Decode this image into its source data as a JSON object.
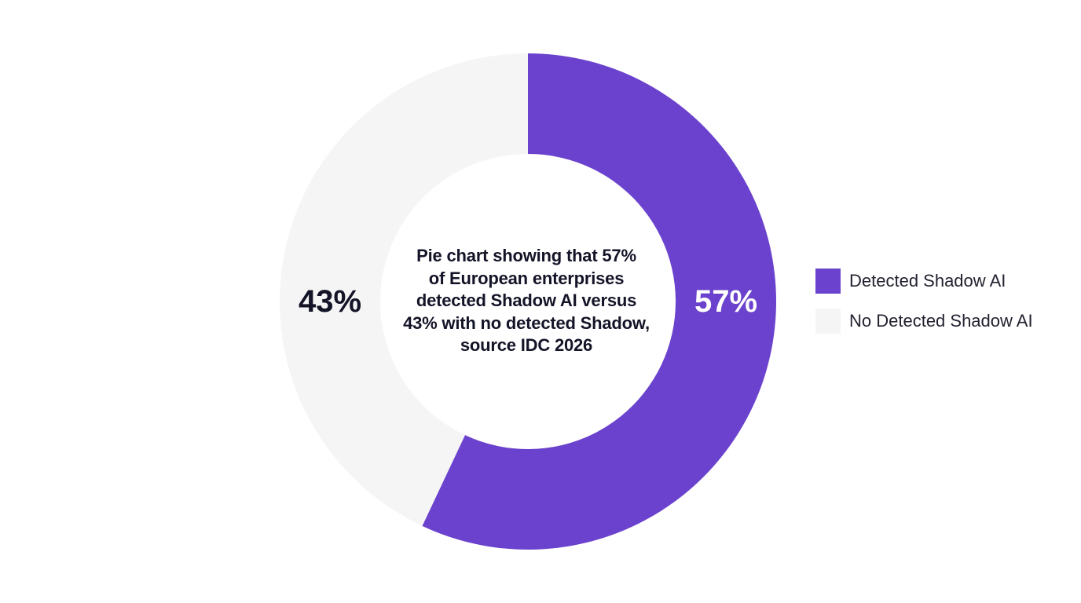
{
  "chart_data": {
    "type": "pie",
    "variant": "donut",
    "series": [
      {
        "name": "Detected Shadow AI",
        "value": 57,
        "label": "57%",
        "color": "#6B42CD",
        "label_color": "#ffffff"
      },
      {
        "name": "No Detected Shadow AI",
        "value": 43,
        "label": "43%",
        "color": "#F5F5F5",
        "label_color": "#141428"
      }
    ],
    "center_text_lines": [
      "Pie chart showing that 57%",
      "of European enterprises",
      "detected Shadow AI versus",
      "43% with no detected Shadow,",
      "source IDC 2026"
    ],
    "start_angle": "12 o'clock",
    "direction": "clockwise",
    "legend_position": "right"
  }
}
